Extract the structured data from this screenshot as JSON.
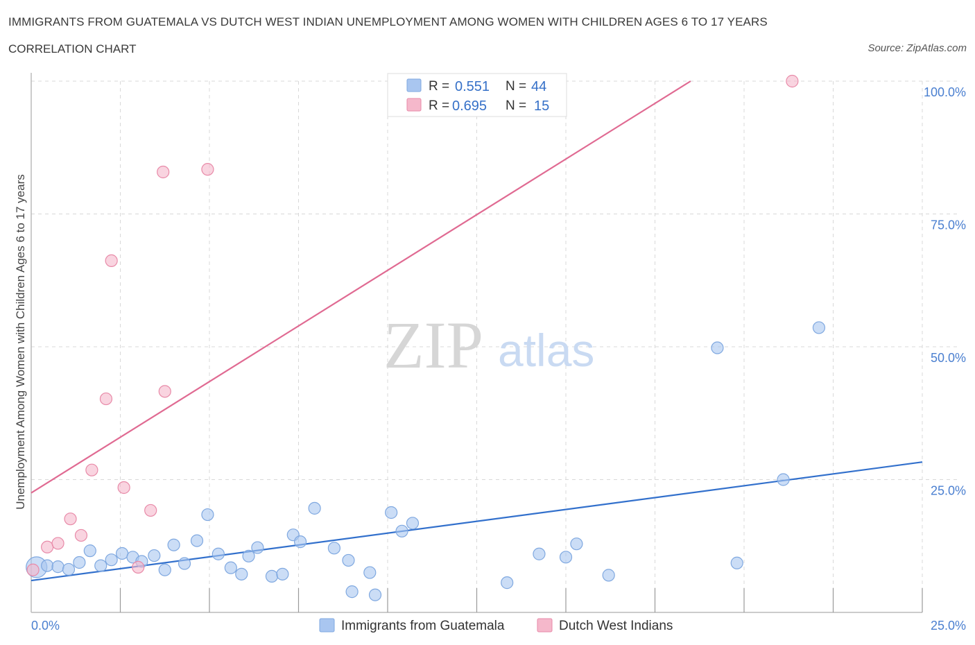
{
  "header": {
    "title": "IMMIGRANTS FROM GUATEMALA VS DUTCH WEST INDIAN UNEMPLOYMENT AMONG WOMEN WITH CHILDREN AGES 6 TO 17 YEARS",
    "subtitle": "CORRELATION CHART",
    "source": "Source: ZipAtlas.com"
  },
  "watermark": {
    "zip": "ZIP",
    "atlas": "atlas"
  },
  "legend": {
    "rows": [
      {
        "r_label": "R =",
        "r_value": "0.551",
        "n_label": "N =",
        "n_value": "44",
        "color": "#a9c6f0"
      },
      {
        "r_label": "R =",
        "r_value": "0.695",
        "n_label": "N =",
        "n_value": "15",
        "color": "#f5b8cb"
      }
    ]
  },
  "colors": {
    "blue_fill": "#a9c6f0",
    "blue_stroke": "#7fa8e0",
    "blue_line": "#3270cc",
    "pink_fill": "#f5b8cb",
    "pink_stroke": "#e88aa8",
    "pink_line": "#e06a92",
    "grid": "#d8d8d8",
    "axis": "#bbbbbb"
  },
  "chart_data": {
    "type": "scatter",
    "title": "IMMIGRANTS FROM GUATEMALA VS DUTCH WEST INDIAN UNEMPLOYMENT AMONG WOMEN WITH CHILDREN AGES 6 TO 17 YEARS",
    "xlabel": "",
    "ylabel": "Unemployment Among Women with Children Ages 6 to 17 years",
    "xlim": [
      0,
      25
    ],
    "ylim": [
      0,
      100
    ],
    "x_tick_labels": [
      "0.0%",
      "25.0%"
    ],
    "y_ticks": [
      25,
      50,
      75,
      100
    ],
    "y_tick_labels": [
      "25.0%",
      "50.0%",
      "75.0%",
      "100.0%"
    ],
    "grid": true,
    "legend_placement": "top-center",
    "series": [
      {
        "name": "Immigrants from Guatemala",
        "color": "#a9c6f0",
        "trendline": {
          "x": [
            0,
            25
          ],
          "y": [
            6.0,
            28.3
          ]
        },
        "points": [
          {
            "x": 0.15,
            "y": 8.5,
            "big": true
          },
          {
            "x": 0.45,
            "y": 8.8
          },
          {
            "x": 0.75,
            "y": 8.6
          },
          {
            "x": 1.05,
            "y": 8.1
          },
          {
            "x": 1.35,
            "y": 9.4
          },
          {
            "x": 1.65,
            "y": 11.6
          },
          {
            "x": 1.95,
            "y": 8.8
          },
          {
            "x": 2.25,
            "y": 9.9
          },
          {
            "x": 2.55,
            "y": 11.1
          },
          {
            "x": 2.85,
            "y": 10.4
          },
          {
            "x": 3.1,
            "y": 9.6
          },
          {
            "x": 3.45,
            "y": 10.7
          },
          {
            "x": 3.75,
            "y": 8.0
          },
          {
            "x": 4.0,
            "y": 12.7
          },
          {
            "x": 4.3,
            "y": 9.2
          },
          {
            "x": 4.65,
            "y": 13.5
          },
          {
            "x": 4.95,
            "y": 18.4
          },
          {
            "x": 5.25,
            "y": 11.0
          },
          {
            "x": 5.6,
            "y": 8.4
          },
          {
            "x": 5.9,
            "y": 7.2
          },
          {
            "x": 6.1,
            "y": 10.6
          },
          {
            "x": 6.35,
            "y": 12.2
          },
          {
            "x": 6.75,
            "y": 6.8
          },
          {
            "x": 7.05,
            "y": 7.2
          },
          {
            "x": 7.35,
            "y": 14.6
          },
          {
            "x": 7.55,
            "y": 13.3
          },
          {
            "x": 7.95,
            "y": 19.6
          },
          {
            "x": 8.5,
            "y": 12.1
          },
          {
            "x": 8.9,
            "y": 9.8
          },
          {
            "x": 9.0,
            "y": 3.9
          },
          {
            "x": 9.5,
            "y": 7.5
          },
          {
            "x": 9.65,
            "y": 3.3
          },
          {
            "x": 10.1,
            "y": 18.8
          },
          {
            "x": 10.4,
            "y": 15.3
          },
          {
            "x": 10.7,
            "y": 16.8
          },
          {
            "x": 13.35,
            "y": 5.6
          },
          {
            "x": 14.25,
            "y": 11.0
          },
          {
            "x": 15.0,
            "y": 10.4
          },
          {
            "x": 15.3,
            "y": 12.9
          },
          {
            "x": 16.2,
            "y": 7.0
          },
          {
            "x": 19.25,
            "y": 49.8
          },
          {
            "x": 19.8,
            "y": 9.3
          },
          {
            "x": 21.1,
            "y": 25.0
          },
          {
            "x": 22.1,
            "y": 53.6
          }
        ]
      },
      {
        "name": "Dutch West Indians",
        "color": "#f5b8cb",
        "trendline": {
          "x": [
            0,
            18.5
          ],
          "y": [
            22.5,
            100
          ]
        },
        "points": [
          {
            "x": 0.05,
            "y": 8.0
          },
          {
            "x": 0.45,
            "y": 12.3
          },
          {
            "x": 0.75,
            "y": 13.0
          },
          {
            "x": 1.1,
            "y": 17.6
          },
          {
            "x": 1.4,
            "y": 14.5
          },
          {
            "x": 1.7,
            "y": 26.8
          },
          {
            "x": 2.1,
            "y": 40.2
          },
          {
            "x": 2.25,
            "y": 66.2
          },
          {
            "x": 2.6,
            "y": 23.5
          },
          {
            "x": 3.0,
            "y": 8.5
          },
          {
            "x": 3.35,
            "y": 19.2
          },
          {
            "x": 3.7,
            "y": 82.9
          },
          {
            "x": 3.75,
            "y": 41.6
          },
          {
            "x": 4.95,
            "y": 83.4
          },
          {
            "x": 21.35,
            "y": 100.0
          }
        ]
      }
    ]
  },
  "bottom_legend": {
    "items": [
      {
        "label": "Immigrants from Guatemala",
        "color": "#a9c6f0"
      },
      {
        "label": "Dutch West Indians",
        "color": "#f5b8cb"
      }
    ]
  }
}
